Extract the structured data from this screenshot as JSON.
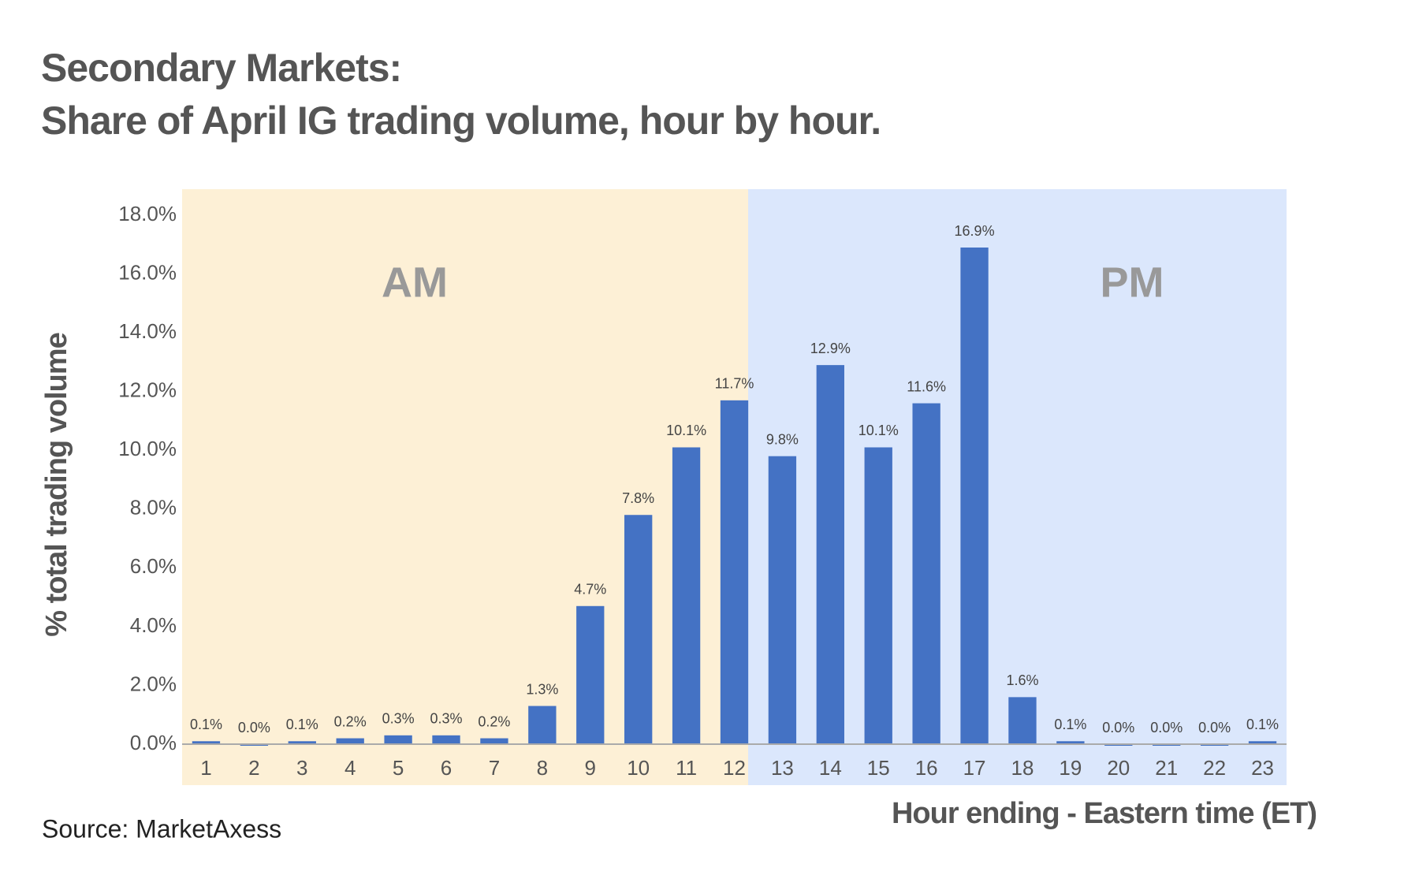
{
  "chart_data": {
    "type": "bar",
    "title": "Secondary Markets:",
    "subtitle": "Share of April IG trading volume, hour by hour.",
    "y_label": "% total trading volume",
    "x_label": "Hour ending - Eastern time (ET)",
    "source": "Source: MarketAxess",
    "annotations": [
      "AM",
      "PM"
    ],
    "categories": [
      "1",
      "2",
      "3",
      "4",
      "5",
      "6",
      "7",
      "8",
      "9",
      "10",
      "11",
      "12",
      "13",
      "14",
      "15",
      "16",
      "17",
      "18",
      "19",
      "20",
      "21",
      "22",
      "23"
    ],
    "values": [
      0.1,
      0.0,
      0.1,
      0.2,
      0.3,
      0.3,
      0.2,
      1.3,
      4.7,
      7.8,
      10.1,
      11.7,
      9.8,
      12.9,
      10.1,
      11.6,
      16.9,
      1.6,
      0.1,
      0.0,
      0.0,
      0.0,
      0.1
    ],
    "value_labels": [
      "0.1%",
      "0.0%",
      "0.1%",
      "0.2%",
      "0.3%",
      "0.3%",
      "0.2%",
      "1.3%",
      "4.7%",
      "7.8%",
      "10.1%",
      "11.7%",
      "9.8%",
      "12.9%",
      "10.1%",
      "11.6%",
      "16.9%",
      "1.6%",
      "0.1%",
      "0.0%",
      "0.0%",
      "0.0%",
      "0.1%"
    ],
    "color": "#4472c4",
    "ylim": [
      0,
      18
    ],
    "yticks": [
      {
        "value": 0,
        "label": "0.0%"
      },
      {
        "value": 2,
        "label": "2.0%"
      },
      {
        "value": 4,
        "label": "4.0%"
      },
      {
        "value": 6,
        "label": "6.0%"
      },
      {
        "value": 8,
        "label": "8.0%"
      },
      {
        "value": 10,
        "label": "10.0%"
      },
      {
        "value": 12,
        "label": "12.0%"
      },
      {
        "value": 14,
        "label": "14.0%"
      },
      {
        "value": 16,
        "label": "16.0%"
      },
      {
        "value": 18,
        "label": "18.0%"
      }
    ],
    "grid": false
  }
}
